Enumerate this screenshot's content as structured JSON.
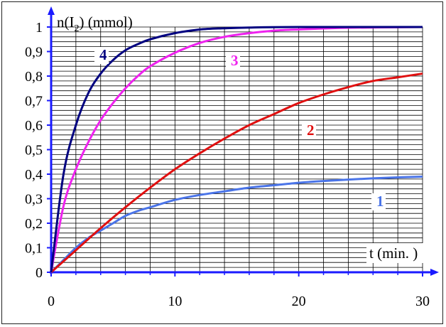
{
  "chart_data": {
    "type": "line",
    "ylabel": {
      "pre": "n(I",
      "sub": "2",
      "post": ") (mmol)"
    },
    "xlabel": "t (min. )",
    "xlim": [
      0,
      30
    ],
    "ylim": [
      0,
      1
    ],
    "x_ticks": [
      "0",
      "10",
      "20",
      "30"
    ],
    "x_tick_values": [
      0,
      10,
      20,
      30
    ],
    "y_ticks": [
      "0",
      "0,1",
      "0,2",
      "0,3",
      "0,4",
      "0,5",
      "0,6",
      "0,7",
      "0,8",
      "0,9",
      "1"
    ],
    "y_tick_values": [
      0,
      0.1,
      0.2,
      0.3,
      0.4,
      0.5,
      0.6,
      0.7,
      0.8,
      0.9,
      1.0
    ],
    "grid": true,
    "series": [
      {
        "name": "1",
        "color": "#4a74e8",
        "x": [
          0,
          1,
          2,
          3,
          4,
          5,
          6,
          7,
          8,
          10,
          12,
          14,
          16,
          18,
          20,
          22,
          24,
          26,
          28,
          30
        ],
        "y": [
          0,
          0.05,
          0.1,
          0.14,
          0.17,
          0.2,
          0.23,
          0.25,
          0.265,
          0.295,
          0.315,
          0.33,
          0.345,
          0.355,
          0.365,
          0.372,
          0.378,
          0.383,
          0.387,
          0.39
        ]
      },
      {
        "name": "2",
        "color": "#e01010",
        "x": [
          0,
          2,
          4,
          6,
          8,
          10,
          12,
          14,
          16,
          18,
          20,
          22,
          24,
          26,
          28,
          30
        ],
        "y": [
          0,
          0.09,
          0.18,
          0.265,
          0.345,
          0.42,
          0.485,
          0.545,
          0.6,
          0.645,
          0.69,
          0.725,
          0.755,
          0.78,
          0.795,
          0.81
        ]
      },
      {
        "name": "3",
        "color": "#ee22ee",
        "x": [
          0,
          1,
          2,
          3,
          4,
          5,
          6,
          7,
          8,
          10,
          12,
          14,
          16,
          18,
          20,
          24,
          30
        ],
        "y": [
          0,
          0.27,
          0.42,
          0.53,
          0.62,
          0.69,
          0.75,
          0.8,
          0.84,
          0.895,
          0.935,
          0.96,
          0.975,
          0.985,
          0.99,
          0.997,
          1.0
        ]
      },
      {
        "name": "4",
        "color": "#000080",
        "x": [
          0,
          1,
          2,
          3,
          4,
          5,
          6,
          7,
          8,
          10,
          12,
          14,
          16,
          20,
          30
        ],
        "y": [
          0,
          0.4,
          0.6,
          0.73,
          0.81,
          0.865,
          0.905,
          0.93,
          0.95,
          0.975,
          0.99,
          0.995,
          0.998,
          1.0,
          1.0
        ]
      }
    ]
  }
}
